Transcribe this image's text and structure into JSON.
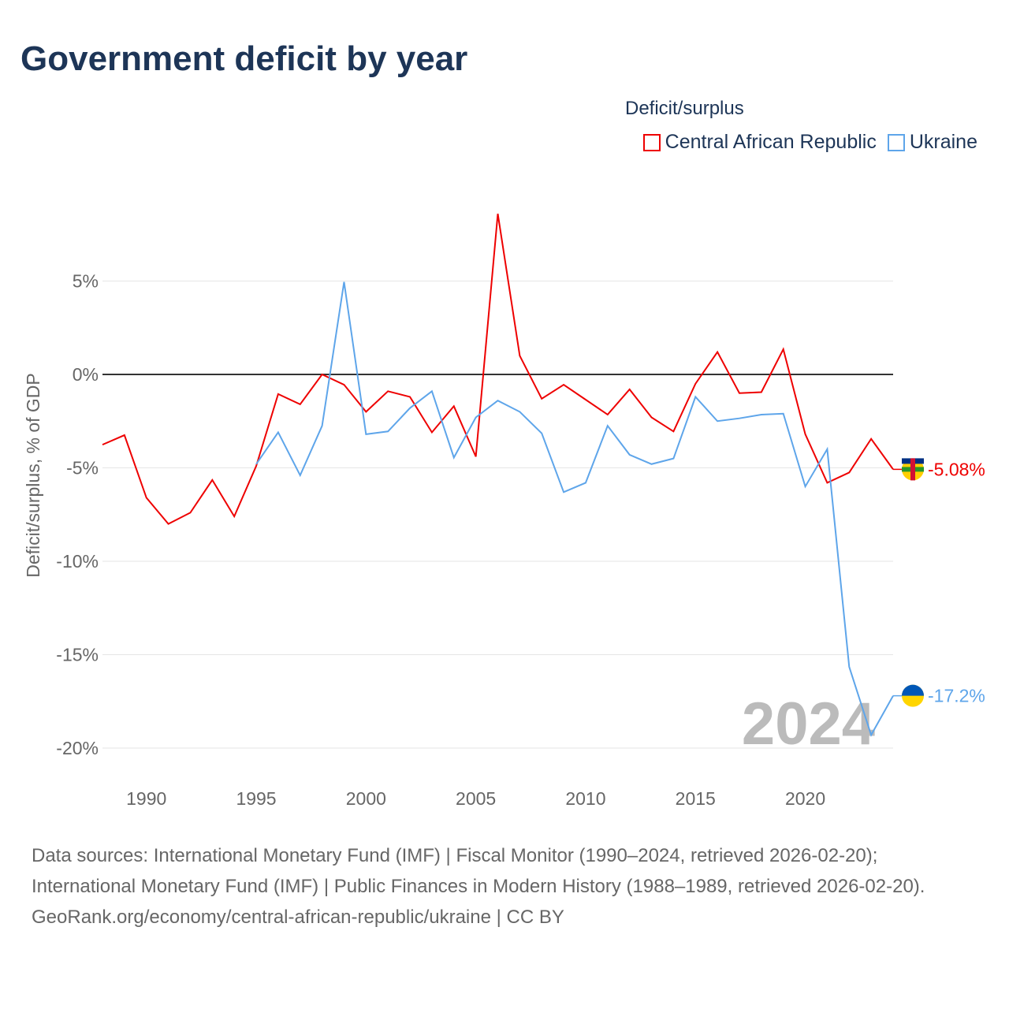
{
  "title": "Government deficit by year",
  "legend": {
    "title": "Deficit/surplus",
    "items": [
      {
        "label": "Central African Republic",
        "color": "#ee0000"
      },
      {
        "label": "Ukraine",
        "color": "#5ea5ea"
      }
    ]
  },
  "footer": {
    "line1": "Data sources: International Monetary Fund (IMF) | Fiscal Monitor (1990–2024, retrieved 2026-02-20); International Monetary Fund (IMF) | Public Finances in Modern History (1988–1989, retrieved 2026-02-20).",
    "line2": "GeoRank.org/economy/central-african-republic/ukraine | CC BY"
  },
  "chart_data": {
    "type": "line",
    "title": "Government deficit by year",
    "ylabel": "Deficit/surplus, % of GDP",
    "xlabel": "",
    "xlim": [
      1988,
      2024
    ],
    "ylim": [
      -21,
      9
    ],
    "xticks": [
      1990,
      1995,
      2000,
      2005,
      2010,
      2015,
      2020
    ],
    "yticks": [
      5,
      0,
      -5,
      -10,
      -15,
      -20
    ],
    "ytick_labels": [
      "5%",
      "0%",
      "-5%",
      "-10%",
      "-15%",
      "-20%"
    ],
    "year_watermark": "2024",
    "series": [
      {
        "name": "Central African Republic",
        "color": "#ee0000",
        "end_label": "-5.08%",
        "x_start": 1988,
        "values": [
          -3.76,
          -3.25,
          -6.6,
          -8.0,
          -7.4,
          -5.65,
          -7.6,
          -4.9,
          -1.05,
          -1.6,
          0,
          -0.55,
          -2.0,
          -0.9,
          -1.2,
          -3.1,
          -1.7,
          -4.4,
          8.6,
          1.0,
          -1.3,
          -0.55,
          -1.35,
          -2.15,
          -0.8,
          -2.3,
          -3.05,
          -0.5,
          1.2,
          -1.0,
          -0.95,
          1.35,
          -3.2,
          -5.8,
          -5.25,
          -3.45,
          -5.08
        ]
      },
      {
        "name": "Ukraine",
        "color": "#5ea5ea",
        "end_label": "-17.2%",
        "x_start": 1995,
        "values": [
          -4.8,
          -3.1,
          -5.4,
          -2.75,
          4.95,
          -3.2,
          -3.05,
          -1.8,
          -0.9,
          -4.45,
          -2.3,
          -1.4,
          -2.0,
          -3.15,
          -6.3,
          -5.8,
          -2.75,
          -4.3,
          -4.8,
          -4.5,
          -1.2,
          -2.5,
          -2.35,
          -2.15,
          -2.1,
          -6.0,
          -4.0,
          -15.65,
          -19.3,
          -17.2
        ]
      }
    ]
  }
}
